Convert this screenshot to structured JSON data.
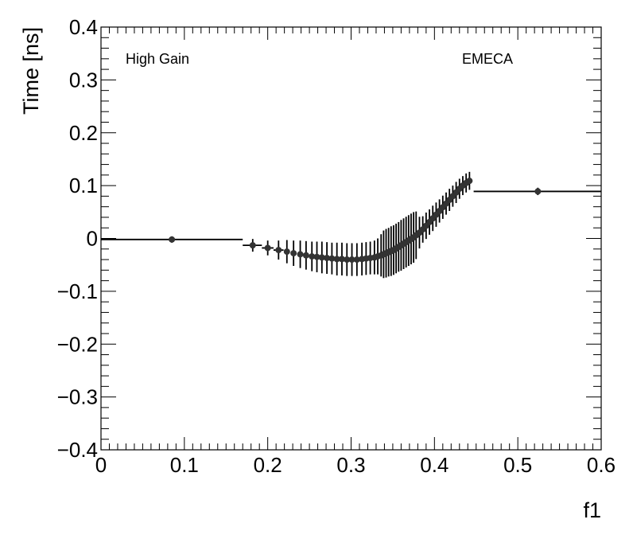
{
  "chart_data": {
    "type": "scatter",
    "title": "",
    "xlabel": "f1",
    "ylabel": "Time [ns]",
    "xlim": [
      0,
      0.6
    ],
    "ylim": [
      -0.4,
      0.4
    ],
    "grid": false,
    "legend": "none",
    "x_ticks": [
      {
        "v": 0,
        "label": "0"
      },
      {
        "v": 0.1,
        "label": "0.1"
      },
      {
        "v": 0.2,
        "label": "0.2"
      },
      {
        "v": 0.3,
        "label": "0.3"
      },
      {
        "v": 0.4,
        "label": "0.4"
      },
      {
        "v": 0.5,
        "label": "0.5"
      },
      {
        "v": 0.6,
        "label": "0.6"
      }
    ],
    "y_ticks": [
      {
        "v": -0.4,
        "label": "−0.4"
      },
      {
        "v": -0.3,
        "label": "−0.3"
      },
      {
        "v": -0.2,
        "label": "−0.2"
      },
      {
        "v": -0.1,
        "label": "−0.1"
      },
      {
        "v": 0,
        "label": "0"
      },
      {
        "v": 0.1,
        "label": "0.1"
      },
      {
        "v": 0.2,
        "label": "0.2"
      },
      {
        "v": 0.3,
        "label": "0.3"
      },
      {
        "v": 0.4,
        "label": "0.4"
      }
    ],
    "annotations": {
      "left": "High Gain",
      "right": "EMECA"
    },
    "marker_color": "#333333",
    "line_color": "#000000",
    "points": [
      {
        "x": 0.085,
        "y": -0.002,
        "xlo": 0.0,
        "xhi": 0.17,
        "err": 0.006
      },
      {
        "x": 0.182,
        "y": -0.013,
        "xlo": 0.17,
        "xhi": 0.193,
        "err": 0.012
      },
      {
        "x": 0.2,
        "y": -0.018,
        "xlo": 0.193,
        "xhi": 0.207,
        "err": 0.014
      },
      {
        "x": 0.213,
        "y": -0.022,
        "xlo": 0.207,
        "xhi": 0.219,
        "err": 0.018
      },
      {
        "x": 0.223,
        "y": -0.025,
        "err": 0.022
      },
      {
        "x": 0.231,
        "y": -0.028,
        "err": 0.024
      },
      {
        "x": 0.239,
        "y": -0.03,
        "err": 0.026
      },
      {
        "x": 0.246,
        "y": -0.032,
        "err": 0.027
      },
      {
        "x": 0.253,
        "y": -0.034,
        "err": 0.028
      },
      {
        "x": 0.259,
        "y": -0.035,
        "err": 0.029
      },
      {
        "x": 0.265,
        "y": -0.036,
        "err": 0.03
      },
      {
        "x": 0.271,
        "y": -0.037,
        "err": 0.03
      },
      {
        "x": 0.277,
        "y": -0.038,
        "err": 0.03
      },
      {
        "x": 0.283,
        "y": -0.039,
        "err": 0.031
      },
      {
        "x": 0.289,
        "y": -0.039,
        "err": 0.031
      },
      {
        "x": 0.295,
        "y": -0.04,
        "err": 0.031
      },
      {
        "x": 0.301,
        "y": -0.04,
        "err": 0.031
      },
      {
        "x": 0.307,
        "y": -0.04,
        "err": 0.031
      },
      {
        "x": 0.313,
        "y": -0.039,
        "err": 0.031
      },
      {
        "x": 0.318,
        "y": -0.038,
        "err": 0.031
      },
      {
        "x": 0.323,
        "y": -0.037,
        "err": 0.031
      },
      {
        "x": 0.328,
        "y": -0.036,
        "err": 0.032
      },
      {
        "x": 0.332,
        "y": -0.034,
        "err": 0.034
      },
      {
        "x": 0.336,
        "y": -0.032,
        "err": 0.04
      },
      {
        "x": 0.339,
        "y": -0.03,
        "err": 0.045
      },
      {
        "x": 0.342,
        "y": -0.028,
        "err": 0.046
      },
      {
        "x": 0.345,
        "y": -0.026,
        "err": 0.046
      },
      {
        "x": 0.348,
        "y": -0.024,
        "err": 0.047
      },
      {
        "x": 0.351,
        "y": -0.022,
        "err": 0.047
      },
      {
        "x": 0.354,
        "y": -0.019,
        "err": 0.047
      },
      {
        "x": 0.357,
        "y": -0.016,
        "err": 0.047
      },
      {
        "x": 0.36,
        "y": -0.013,
        "err": 0.048
      },
      {
        "x": 0.363,
        "y": -0.01,
        "err": 0.048
      },
      {
        "x": 0.366,
        "y": -0.007,
        "err": 0.048
      },
      {
        "x": 0.369,
        "y": -0.004,
        "err": 0.048
      },
      {
        "x": 0.372,
        "y": -0.001,
        "err": 0.048
      },
      {
        "x": 0.375,
        "y": 0.002,
        "err": 0.048
      },
      {
        "x": 0.378,
        "y": 0.006,
        "err": 0.045
      },
      {
        "x": 0.382,
        "y": 0.011,
        "err": 0.03
      },
      {
        "x": 0.386,
        "y": 0.017,
        "err": 0.025
      },
      {
        "x": 0.39,
        "y": 0.024,
        "err": 0.025
      },
      {
        "x": 0.394,
        "y": 0.031,
        "err": 0.024
      },
      {
        "x": 0.398,
        "y": 0.038,
        "err": 0.024
      },
      {
        "x": 0.402,
        "y": 0.045,
        "err": 0.023
      },
      {
        "x": 0.406,
        "y": 0.052,
        "err": 0.022
      },
      {
        "x": 0.41,
        "y": 0.059,
        "err": 0.022
      },
      {
        "x": 0.414,
        "y": 0.066,
        "err": 0.021
      },
      {
        "x": 0.418,
        "y": 0.073,
        "err": 0.021
      },
      {
        "x": 0.422,
        "y": 0.08,
        "err": 0.02
      },
      {
        "x": 0.426,
        "y": 0.087,
        "err": 0.02
      },
      {
        "x": 0.43,
        "y": 0.094,
        "err": 0.019
      },
      {
        "x": 0.434,
        "y": 0.1,
        "err": 0.018
      },
      {
        "x": 0.438,
        "y": 0.105,
        "err": 0.018
      },
      {
        "x": 0.442,
        "y": 0.109,
        "err": 0.017
      },
      {
        "x": 0.524,
        "y": 0.089,
        "xlo": 0.447,
        "xhi": 0.6,
        "err": 0.007
      }
    ]
  }
}
